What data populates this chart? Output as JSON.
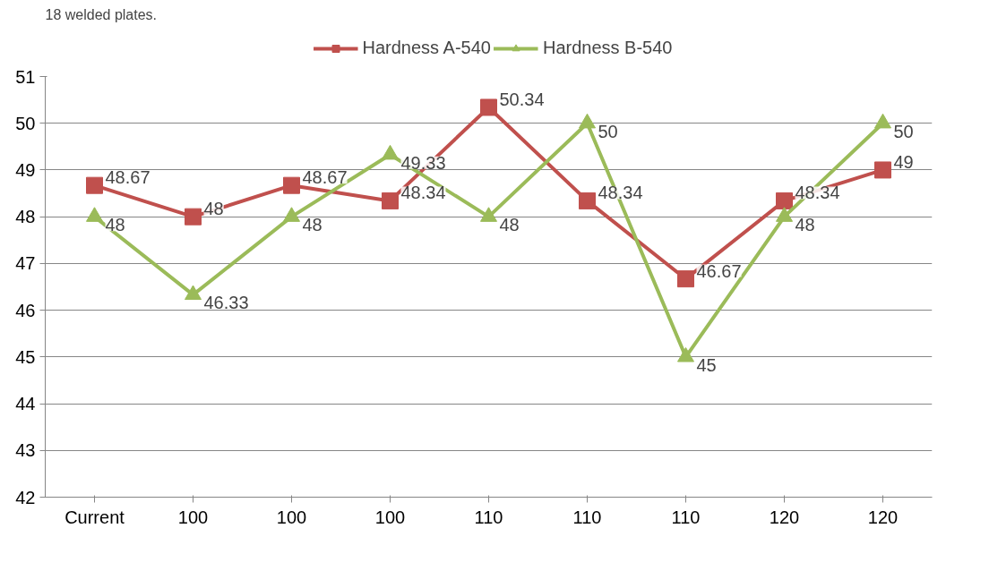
{
  "chart_data": {
    "type": "line",
    "annotations": [
      "18 welded plates."
    ],
    "categories": [
      "Current",
      "100",
      "100",
      "100",
      "110",
      "110",
      "110",
      "120",
      "120"
    ],
    "series": [
      {
        "name": "Hardness A-540",
        "color": "#c0504d",
        "marker": "square",
        "values": [
          48.67,
          48,
          48.67,
          48.34,
          50.34,
          48.34,
          46.67,
          48.34,
          49
        ]
      },
      {
        "name": "Hardness B-540",
        "color": "#9bbb59",
        "marker": "triangle",
        "values": [
          48,
          46.33,
          48,
          49.33,
          48,
          50,
          45,
          48,
          50
        ]
      }
    ],
    "ylim": [
      42,
      51
    ],
    "yticks": [
      42,
      43,
      44,
      45,
      46,
      47,
      48,
      49,
      50,
      51
    ],
    "grid": "y",
    "legend": "top",
    "data_labels": true
  }
}
